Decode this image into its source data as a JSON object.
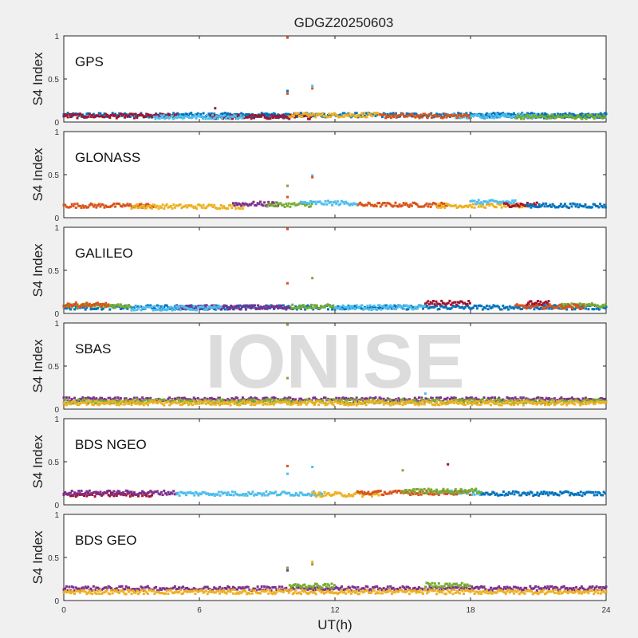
{
  "figure": {
    "title": "GDGZ20250603",
    "xlabel": "UT(h)",
    "watermark": "IONISE"
  },
  "chart_data": {
    "type": "scatter",
    "title": "GDGZ20250603",
    "xlabel": "UT(h)",
    "ylabel": "S4 Index",
    "xlim": [
      0,
      24
    ],
    "ylim": [
      0,
      1
    ],
    "xticks": [
      "0",
      "6",
      "12",
      "18",
      "24"
    ],
    "yticks": [
      "0",
      "0.5",
      "1"
    ],
    "grid": false,
    "panels": [
      {
        "name": "GPS",
        "baseline": [
          {
            "color": "#0072BD",
            "segments": [
              [
                0,
                0.08
              ],
              [
                7,
                0.07
              ],
              [
                18.5,
                24,
                0.07
              ]
            ]
          },
          {
            "color": "#A2142F",
            "segments": [
              [
                0,
                5,
                0.07
              ],
              [
                6.5,
                11,
                0.06
              ]
            ]
          },
          {
            "color": "#4DBEEE",
            "segments": [
              [
                4,
                8,
                0.06
              ],
              [
                17,
                21,
                0.07
              ]
            ]
          },
          {
            "color": "#EDB120",
            "segments": [
              [
                10,
                14,
                0.08
              ]
            ]
          },
          {
            "color": "#D95319",
            "segments": [
              [
                14,
                18,
                0.07
              ]
            ]
          },
          {
            "color": "#77AC30",
            "segments": [
              [
                20,
                24,
                0.06
              ]
            ]
          }
        ],
        "outliers": [
          {
            "x": 9.9,
            "y": 0.98,
            "color": "#D95319"
          },
          {
            "x": 9.9,
            "y": 0.36,
            "color": "#0072BD"
          },
          {
            "x": 9.9,
            "y": 0.33,
            "color": "#D95319"
          },
          {
            "x": 11.0,
            "y": 0.42,
            "color": "#4DBEEE"
          },
          {
            "x": 11.0,
            "y": 0.39,
            "color": "#D95319"
          },
          {
            "x": 6.7,
            "y": 0.16,
            "color": "#A2142F"
          }
        ]
      },
      {
        "name": "GLONASS",
        "baseline": [
          {
            "color": "#D95319",
            "segments": [
              [
                0,
                4,
                0.14
              ],
              [
                13,
                17,
                0.15
              ]
            ]
          },
          {
            "color": "#EDB120",
            "segments": [
              [
                3,
                8,
                0.13
              ],
              [
                16.5,
                20.5,
                0.14
              ]
            ]
          },
          {
            "color": "#7E2F8E",
            "segments": [
              [
                7.5,
                9.5,
                0.16
              ]
            ]
          },
          {
            "color": "#77AC30",
            "segments": [
              [
                9,
                11,
                0.15
              ]
            ]
          },
          {
            "color": "#4DBEEE",
            "segments": [
              [
                10.5,
                13,
                0.17
              ],
              [
                18,
                20,
                0.18
              ]
            ]
          },
          {
            "color": "#A2142F",
            "segments": [
              [
                19.5,
                21,
                0.15
              ]
            ]
          },
          {
            "color": "#0072BD",
            "segments": [
              [
                20.5,
                24,
                0.14
              ]
            ]
          }
        ],
        "outliers": [
          {
            "x": 9.9,
            "y": 0.37,
            "color": "#77AC30"
          },
          {
            "x": 9.9,
            "y": 0.24,
            "color": "#D95319"
          },
          {
            "x": 11.0,
            "y": 0.49,
            "color": "#4DBEEE"
          },
          {
            "x": 11.0,
            "y": 0.47,
            "color": "#D95319"
          }
        ]
      },
      {
        "name": "GALILEO",
        "baseline": [
          {
            "color": "#0072BD",
            "segments": [
              [
                0,
                24,
                0.07
              ]
            ]
          },
          {
            "color": "#77AC30",
            "segments": [
              [
                0,
                3,
                0.09
              ],
              [
                10,
                12,
                0.08
              ],
              [
                22,
                24,
                0.09
              ]
            ]
          },
          {
            "color": "#D95319",
            "segments": [
              [
                0,
                2,
                0.1
              ],
              [
                20,
                23,
                0.08
              ]
            ]
          },
          {
            "color": "#7E2F8E",
            "segments": [
              [
                5,
                10,
                0.07
              ]
            ]
          },
          {
            "color": "#4DBEEE",
            "segments": [
              [
                3,
                7,
                0.06
              ],
              [
                12,
                16,
                0.07
              ]
            ]
          },
          {
            "color": "#A2142F",
            "segments": [
              [
                16,
                18,
                0.12
              ],
              [
                20.5,
                21.5,
                0.12
              ]
            ]
          }
        ],
        "outliers": [
          {
            "x": 9.9,
            "y": 0.98,
            "color": "#D95319"
          },
          {
            "x": 9.9,
            "y": 0.35,
            "color": "#D95319"
          },
          {
            "x": 11.0,
            "y": 0.41,
            "color": "#77AC30"
          }
        ]
      },
      {
        "name": "SBAS",
        "baseline": [
          {
            "color": "#7E2F8E",
            "segments": [
              [
                0,
                24,
                0.11
              ]
            ]
          },
          {
            "color": "#77AC30",
            "segments": [
              [
                0,
                24,
                0.09
              ]
            ]
          },
          {
            "color": "#EDB120",
            "segments": [
              [
                0,
                24,
                0.07
              ]
            ]
          }
        ],
        "outliers": [
          {
            "x": 9.9,
            "y": 0.98,
            "color": "#77AC30"
          },
          {
            "x": 9.9,
            "y": 0.36,
            "color": "#77AC30"
          },
          {
            "x": 16.0,
            "y": 0.18,
            "color": "#4DBEEE"
          }
        ]
      },
      {
        "name": "BDS NGEO",
        "baseline": [
          {
            "color": "#A2142F",
            "segments": [
              [
                0,
                4,
                0.12
              ]
            ]
          },
          {
            "color": "#7E2F8E",
            "segments": [
              [
                0,
                5,
                0.14
              ]
            ]
          },
          {
            "color": "#4DBEEE",
            "segments": [
              [
                5,
                11.5,
                0.13
              ],
              [
                16.5,
                18.5,
                0.14
              ]
            ]
          },
          {
            "color": "#EDB120",
            "segments": [
              [
                11,
                14,
                0.12
              ]
            ]
          },
          {
            "color": "#D95319",
            "segments": [
              [
                13,
                18,
                0.14
              ]
            ]
          },
          {
            "color": "#77AC30",
            "segments": [
              [
                15,
                18.5,
                0.16
              ]
            ]
          },
          {
            "color": "#0072BD",
            "segments": [
              [
                18.5,
                24,
                0.13
              ]
            ]
          }
        ],
        "outliers": [
          {
            "x": 9.9,
            "y": 0.45,
            "color": "#D95319"
          },
          {
            "x": 9.9,
            "y": 0.36,
            "color": "#4DBEEE"
          },
          {
            "x": 11.0,
            "y": 0.44,
            "color": "#4DBEEE"
          },
          {
            "x": 15.0,
            "y": 0.4,
            "color": "#77AC30"
          },
          {
            "x": 17.0,
            "y": 0.47,
            "color": "#A2142F"
          }
        ]
      },
      {
        "name": "BDS GEO",
        "baseline": [
          {
            "color": "#7E2F8E",
            "segments": [
              [
                0,
                24,
                0.14
              ]
            ]
          },
          {
            "color": "#EDB120",
            "segments": [
              [
                0,
                24,
                0.1
              ]
            ]
          },
          {
            "color": "#77AC30",
            "segments": [
              [
                10,
                12,
                0.17
              ],
              [
                16,
                18,
                0.18
              ]
            ]
          }
        ],
        "outliers": [
          {
            "x": 9.9,
            "y": 0.38,
            "color": "#77AC30"
          },
          {
            "x": 9.9,
            "y": 0.35,
            "color": "#7E2F8E"
          },
          {
            "x": 11.0,
            "y": 0.45,
            "color": "#EDB120"
          },
          {
            "x": 11.0,
            "y": 0.42,
            "color": "#77AC30"
          }
        ]
      }
    ]
  }
}
